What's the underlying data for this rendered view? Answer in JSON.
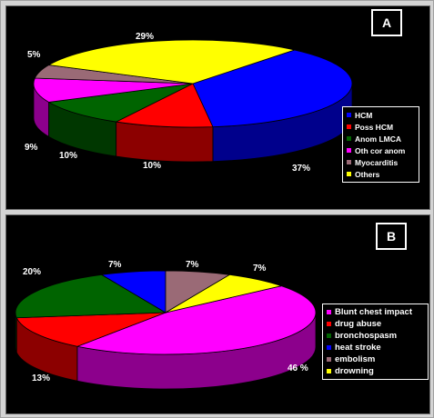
{
  "chart_data": [
    {
      "type": "pie",
      "panel_label": "A",
      "categories": [
        "HCM",
        "Poss HCM",
        "Anom LMCA",
        "Oth cor anom",
        "Myocarditis",
        "Others"
      ],
      "values": [
        37,
        10,
        10,
        9,
        5,
        29
      ],
      "value_labels": [
        "37%",
        "10%",
        "10%",
        "9%",
        "5%",
        "29%"
      ],
      "colors": [
        "#0000ff",
        "#ff0000",
        "#006400",
        "#ff00ff",
        "#9a6a76",
        "#ffff00"
      ],
      "three_d": true,
      "legend_position": "right"
    },
    {
      "type": "pie",
      "panel_label": "B",
      "categories": [
        "Blunt chest impact",
        "drug abuse",
        "bronchospasm",
        "heat stroke",
        "embolism",
        "drowning"
      ],
      "values": [
        46,
        13,
        20,
        7,
        7,
        7
      ],
      "value_labels": [
        "46 %",
        "13%",
        "20%",
        "7%",
        "7%",
        "7%"
      ],
      "colors": [
        "#ff00ff",
        "#ff0000",
        "#006400",
        "#0000ff",
        "#9a6a76",
        "#ffff00"
      ],
      "three_d": true,
      "legend_position": "right"
    }
  ]
}
